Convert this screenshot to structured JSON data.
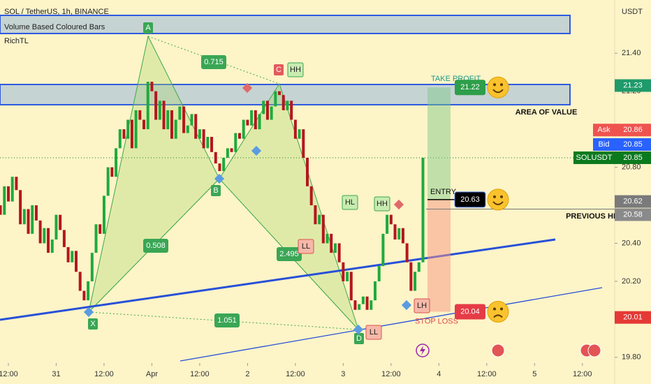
{
  "chart_data": {
    "type": "candlestick",
    "title": "SOL / TetherUS, 1h, BINANCE",
    "indicators": [
      "Volume Based Coloured Bars",
      "RichTL"
    ],
    "y_axis_label": "USDT",
    "up_color": "#1faa3c",
    "down_color": "#b3171e",
    "x": [
      10,
      11,
      12,
      13,
      14,
      15,
      16,
      17,
      18,
      19,
      20,
      21,
      22,
      23,
      24,
      25,
      26,
      27,
      28,
      29,
      30,
      31,
      32,
      33,
      34,
      35,
      36,
      37,
      38,
      39,
      40,
      41,
      42,
      43,
      44,
      45,
      46,
      47,
      48,
      49,
      50,
      51,
      52,
      53,
      54,
      55,
      56,
      57,
      58,
      59,
      60,
      61,
      62,
      63,
      64,
      65,
      66,
      67,
      68,
      69,
      70,
      71,
      72,
      73,
      74,
      75,
      76,
      77,
      78,
      79,
      80,
      81,
      82,
      83,
      84,
      85,
      86,
      87,
      88,
      89,
      90,
      91,
      92,
      93,
      94,
      95,
      96,
      97,
      98,
      99,
      100,
      101,
      102,
      103,
      104,
      105,
      106,
      107,
      108,
      109,
      110,
      111,
      112,
      113,
      114,
      115,
      116
    ],
    "open": [
      20.6,
      20.55,
      20.7,
      20.62,
      20.75,
      20.68,
      20.5,
      20.58,
      20.45,
      20.6,
      20.52,
      20.4,
      20.48,
      20.35,
      20.42,
      20.55,
      20.47,
      20.38,
      20.3,
      20.36,
      20.25,
      20.15,
      20.1,
      20.2,
      20.35,
      20.5,
      20.45,
      20.65,
      20.8,
      20.75,
      20.9,
      21.0,
      20.95,
      21.05,
      20.9,
      21.1,
      21.05,
      21.0,
      21.25,
      21.2,
      21.05,
      21.15,
      21.0,
      21.1,
      20.95,
      21.05,
      21.12,
      20.98,
      21.02,
      21.08,
      20.95,
      21.0,
      20.9,
      20.96,
      20.88,
      20.82,
      20.78,
      20.85,
      20.9,
      20.88,
      20.98,
      20.95,
      21.05,
      21.02,
      21.1,
      21.0,
      21.08,
      21.15,
      21.05,
      21.12,
      21.2,
      21.18,
      21.1,
      21.15,
      21.05,
      20.95,
      21.0,
      20.85,
      20.7,
      20.6,
      20.5,
      20.55,
      20.4,
      20.45,
      20.35,
      20.4,
      20.3,
      20.2,
      20.25,
      20.1,
      20.05,
      20.08,
      20.12,
      20.05,
      20.1,
      20.2,
      20.28,
      20.45,
      20.55,
      20.5,
      20.42,
      20.48,
      20.4,
      20.3,
      20.15,
      20.25,
      20.3
    ],
    "close": [
      20.55,
      20.7,
      20.62,
      20.75,
      20.68,
      20.5,
      20.58,
      20.45,
      20.6,
      20.52,
      20.4,
      20.48,
      20.35,
      20.42,
      20.55,
      20.47,
      20.38,
      20.3,
      20.36,
      20.25,
      20.15,
      20.1,
      20.2,
      20.35,
      20.5,
      20.45,
      20.65,
      20.8,
      20.75,
      20.9,
      21.0,
      20.95,
      21.05,
      20.9,
      21.1,
      21.05,
      21.0,
      21.25,
      21.2,
      21.05,
      21.15,
      21.0,
      21.1,
      20.95,
      21.05,
      21.12,
      20.98,
      21.02,
      21.08,
      20.95,
      21.0,
      20.9,
      20.96,
      20.88,
      20.82,
      20.78,
      20.85,
      20.9,
      20.88,
      20.98,
      20.95,
      21.05,
      21.02,
      21.1,
      21.0,
      21.08,
      21.15,
      21.05,
      21.12,
      21.2,
      21.18,
      21.1,
      21.15,
      21.05,
      20.95,
      21.0,
      20.85,
      20.7,
      20.6,
      20.5,
      20.55,
      20.4,
      20.45,
      20.35,
      20.4,
      20.3,
      20.2,
      20.25,
      20.1,
      20.05,
      20.08,
      20.12,
      20.05,
      20.1,
      20.2,
      20.28,
      20.45,
      20.55,
      20.5,
      20.42,
      20.48,
      20.4,
      20.3,
      20.15,
      20.25,
      20.3,
      20.85
    ],
    "xlim": [
      9.9,
      164.1
    ],
    "ylim": [
      19.77,
      21.68
    ],
    "xticks": [
      {
        "value": 12,
        "label": "12:00"
      },
      {
        "value": 24,
        "label": "31"
      },
      {
        "value": 36,
        "label": "12:00"
      },
      {
        "value": 48,
        "label": "Apr"
      },
      {
        "value": 60,
        "label": "12:00"
      },
      {
        "value": 72,
        "label": "2"
      },
      {
        "value": 84,
        "label": "12:00"
      },
      {
        "value": 96,
        "label": "3"
      },
      {
        "value": 108,
        "label": "12:00"
      },
      {
        "value": 120,
        "label": "4"
      },
      {
        "value": 132,
        "label": "12:00"
      },
      {
        "value": 144,
        "label": "5"
      },
      {
        "value": 156,
        "label": "12:00"
      }
    ],
    "yticks": [
      {
        "value": 21.4,
        "label": "21.40"
      },
      {
        "value": 21.2,
        "label": "21.20"
      },
      {
        "value": 20.8,
        "label": "20.80"
      },
      {
        "value": 20.4,
        "label": "20.40"
      },
      {
        "value": 20.2,
        "label": "20.20"
      },
      {
        "value": 19.8,
        "label": "19.80"
      }
    ],
    "price_labels": [
      {
        "value": 21.23,
        "color": "#1f9a6a"
      },
      {
        "name": "Ask",
        "value": 20.86,
        "color": "#ef5350"
      },
      {
        "name": "Bid",
        "value": 20.85,
        "color": "#2962ff"
      },
      {
        "name": "SOLUSDT",
        "value": 20.85,
        "color": "#0b7a1e"
      },
      {
        "value": 20.62,
        "color": "#7a7a7a"
      },
      {
        "value": 20.58,
        "color": "#8a8a8a"
      },
      {
        "value": 20.01,
        "color": "#e53935"
      }
    ],
    "pattern_points": [
      "X",
      "A",
      "B",
      "C",
      "D"
    ],
    "ratios": [
      0.715,
      0.508,
      2.495,
      1.051
    ],
    "structure": [
      "HH",
      "HL",
      "HH",
      "LL",
      "LH",
      "LL"
    ],
    "zone_label": "AREA OF VALUE",
    "previous_hh_label": "PREVIOUS HH",
    "trade": {
      "take_profit_label": "TAKE PROFIT",
      "entry_label": "ENTRY",
      "stop_loss_label": "STOP LOSS",
      "take_profit": 21.22,
      "entry": 20.63,
      "stop_loss": 20.04
    }
  }
}
